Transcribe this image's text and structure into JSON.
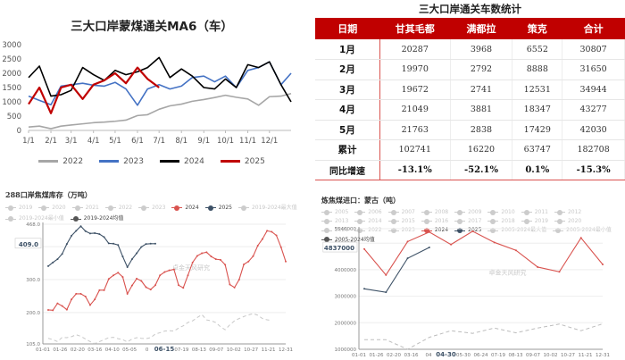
{
  "chart_data": [
    {
      "type": "line",
      "title": "三大口岸蒙煤通关MA6（车）",
      "xlabel": "",
      "ylabel": "",
      "ylim": [
        0,
        3000
      ],
      "yticks": [
        "0",
        "500",
        "1000",
        "1500",
        "2000",
        "2500",
        "3000"
      ],
      "xticks": [
        "1/1",
        "2/1",
        "3/1",
        "4/1",
        "5/1",
        "6/1",
        "7/1",
        "8/1",
        "9/1",
        "10/1",
        "11/1",
        "12/1"
      ],
      "legend_position": "bottom",
      "grid": false,
      "x_days": [
        0,
        15,
        31,
        45,
        59,
        75,
        90,
        105,
        120,
        135,
        151,
        165,
        181,
        196,
        212,
        227,
        243,
        258,
        273,
        288,
        304,
        319,
        334,
        350,
        364
      ],
      "series": [
        {
          "name": "2022",
          "color": "#a6a6a6",
          "values": [
            120,
            150,
            60,
            150,
            190,
            230,
            270,
            290,
            320,
            360,
            520,
            550,
            740,
            860,
            920,
            1020,
            1080,
            1150,
            1230,
            1160,
            1100,
            880,
            1180,
            1200,
            1290
          ]
        },
        {
          "name": "2023",
          "color": "#4472c4",
          "values": [
            1200,
            1050,
            900,
            1550,
            1600,
            1650,
            1580,
            1550,
            1680,
            1450,
            880,
            1450,
            1600,
            1450,
            1550,
            1850,
            1900,
            1700,
            1900,
            1500,
            2100,
            2200,
            2400,
            1600,
            2000
          ]
        },
        {
          "name": "2024",
          "color": "#000000",
          "values": [
            1850,
            2250,
            1200,
            1250,
            1400,
            2200,
            1950,
            1750,
            2100,
            1950,
            2050,
            2200,
            2550,
            1850,
            2150,
            1900,
            1500,
            1450,
            1800,
            1500,
            2300,
            2200,
            2400,
            1600,
            1000
          ]
        },
        {
          "name": "2025",
          "color": "#c00000",
          "values": [
            920,
            1500,
            600,
            1500,
            1600,
            1100,
            1600,
            1750,
            2000,
            1650,
            2200,
            1800,
            1500
          ]
        }
      ]
    },
    {
      "type": "line",
      "title": "288口岸焦煤库存（万吨）",
      "ylim": [
        105,
        468
      ],
      "yticks": [
        "105.0",
        "200.0",
        "300.0",
        "400.0",
        "468.0"
      ],
      "highlight_y": "409.0",
      "xticks": [
        "01-01",
        "01-26",
        "02-20",
        "03-16",
        "04-10",
        "05-05",
        "0",
        "06-15",
        "07-19",
        "08-13",
        "09-07",
        "10-02",
        "10-27",
        "11-21",
        "12-31"
      ],
      "highlight_x": "06-15",
      "watermark": "卓金天风研究",
      "legend": [
        "2019",
        "2020",
        "2021",
        "2022",
        "2023",
        "2024",
        "2025",
        "2019-2024最大值",
        "2019-2024最小值",
        "2019-2024均值"
      ],
      "series": [
        {
          "name": "2024",
          "color": "#d9534f",
          "values": [
            208,
            207,
            228,
            220,
            209,
            240,
            257,
            257,
            249,
            223,
            240,
            268,
            268,
            302,
            313,
            321,
            308,
            257,
            282,
            303,
            296,
            277,
            270,
            283,
            313,
            323,
            328,
            331,
            283,
            275,
            313,
            352,
            372,
            380,
            383,
            370,
            362,
            360,
            345,
            285,
            276,
            300,
            346,
            355,
            371,
            403,
            423,
            448,
            445,
            434,
            398,
            355
          ]
        },
        {
          "name": "2025",
          "color": "#3d5166",
          "values": [
            341,
            352,
            362,
            378,
            408,
            433,
            448,
            462,
            447,
            440,
            441,
            438,
            429,
            410,
            409,
            405,
            370,
            338,
            362,
            380,
            399,
            408,
            409,
            409
          ]
        },
        {
          "name": "2019-2024均值",
          "color": "#c8c8c8",
          "dashed": true,
          "values": [
            122,
            118,
            112,
            125,
            124,
            127,
            133,
            128,
            120,
            112,
            106,
            112,
            118,
            124,
            125,
            121,
            118,
            111,
            120,
            124,
            122,
            121,
            124,
            135,
            139,
            144,
            145,
            144,
            153,
            160,
            170,
            175,
            185,
            194,
            178,
            175,
            170,
            157,
            148,
            163,
            175,
            182,
            188,
            193,
            197,
            192,
            182,
            178,
            176
          ]
        }
      ]
    },
    {
      "type": "line",
      "title": "炼焦煤进口：蒙古（吨）",
      "ylim": [
        1000000,
        5546000
      ],
      "yticks": [
        "1000000",
        "2000000",
        "3000000",
        "4000000",
        "5000000",
        "5546000"
      ],
      "highlight_y": "4837000",
      "xticks": [
        "01-01",
        "01-26",
        "02-20",
        "03-16",
        "04",
        "04-30",
        "05-30",
        "06-24",
        "07-19",
        "08-13",
        "09-07",
        "10-02",
        "10-27",
        "11-21",
        "12-31"
      ],
      "highlight_x": "04-30",
      "watermark": "卓金天风研究",
      "legend": [
        "2005",
        "2006",
        "2007",
        "2008",
        "2009",
        "2010",
        "2011",
        "2012",
        "2013",
        "2014",
        "2015",
        "2016",
        "2017",
        "2018",
        "2019",
        "2020",
        "2021",
        "2022",
        "2023",
        "2024",
        "2025",
        "2005-2024最大值",
        "2005-2024最小值",
        "2005-2024均值"
      ],
      "series": [
        {
          "name": "2024",
          "color": "#d9534f",
          "values": [
            4780000,
            3800000,
            5060000,
            5420000,
            4950000,
            5450000,
            5030000,
            4730000,
            4100000,
            3920000,
            5200000,
            4200000
          ]
        },
        {
          "name": "2025",
          "color": "#3d5166",
          "values": [
            3280000,
            3150000,
            4430000,
            4837000
          ]
        },
        {
          "name": "2005-2024均值",
          "color": "#bdbdbd",
          "dashed": true,
          "values": [
            1360000,
            1360000,
            1000000,
            1450000,
            1700000,
            1600000,
            1800000,
            1620000,
            1800000,
            1950000,
            1700000,
            1960000
          ]
        }
      ]
    }
  ],
  "table": {
    "title": "三大口岸通关车数统计",
    "headers": [
      "日期",
      "甘其毛都",
      "满都拉",
      "策克",
      "合计"
    ],
    "rows": [
      [
        "1月",
        "20287",
        "3968",
        "6552",
        "30807"
      ],
      [
        "2月",
        "19970",
        "2792",
        "8888",
        "31650"
      ],
      [
        "3月",
        "19672",
        "2741",
        "12531",
        "34944"
      ],
      [
        "4月",
        "21049",
        "3881",
        "18347",
        "43277"
      ],
      [
        "5月",
        "21763",
        "2838",
        "17429",
        "42030"
      ],
      [
        "累计",
        "102741",
        "16220",
        "63747",
        "182708"
      ]
    ],
    "yoy_row": [
      "同比增速",
      "-13.1%",
      "-52.1%",
      "0.1%",
      "-15.3%"
    ],
    "header_color": "#c00000"
  }
}
